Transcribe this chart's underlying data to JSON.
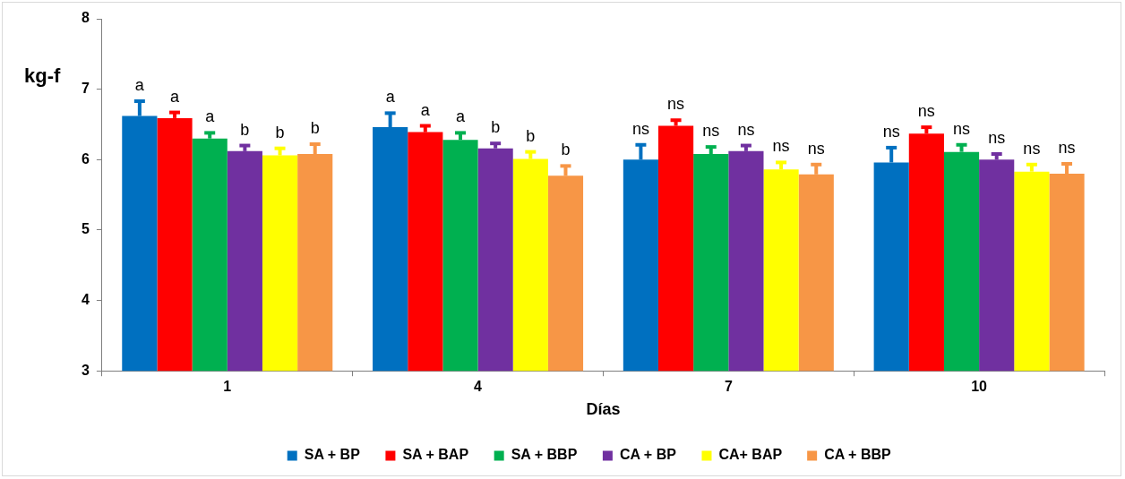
{
  "chart_data": {
    "type": "bar",
    "xlabel": "Días",
    "ylabel": "kg-f",
    "categories": [
      "1",
      "4",
      "7",
      "10"
    ],
    "ylim": [
      3,
      8
    ],
    "yticks": [
      3,
      4,
      5,
      6,
      7,
      8
    ],
    "grid": false,
    "legend": "bottom",
    "series": [
      {
        "name": "SA + BP",
        "color": "#0070c0",
        "values": [
          6.62,
          6.46,
          6.0,
          5.96
        ],
        "errors": [
          [
            6.62,
            6.83
          ],
          [
            6.46,
            6.66
          ],
          [
            6.0,
            6.21
          ],
          [
            5.96,
            6.17
          ]
        ],
        "value_labels": [
          "a",
          "a",
          "ns",
          "ns"
        ]
      },
      {
        "name": "SA + BAP",
        "color": "#ff0000",
        "values": [
          6.59,
          6.39,
          6.48,
          6.37
        ],
        "errors": [
          [
            6.59,
            6.67
          ],
          [
            6.39,
            6.48
          ],
          [
            6.48,
            6.56
          ],
          [
            6.37,
            6.46
          ]
        ],
        "value_labels": [
          "a",
          "a",
          "ns",
          "ns"
        ]
      },
      {
        "name": "SA + BBP",
        "color": "#00b050",
        "values": [
          6.3,
          6.28,
          6.08,
          6.11
        ],
        "errors": [
          [
            6.3,
            6.38
          ],
          [
            6.28,
            6.38
          ],
          [
            6.08,
            6.18
          ],
          [
            6.11,
            6.21
          ]
        ],
        "value_labels": [
          "a",
          "a",
          "ns",
          "ns"
        ]
      },
      {
        "name": "CA + BP",
        "color": "#7030a0",
        "values": [
          6.12,
          6.16,
          6.12,
          6.0
        ],
        "errors": [
          [
            6.12,
            6.2
          ],
          [
            6.16,
            6.23
          ],
          [
            6.12,
            6.2
          ],
          [
            6.0,
            6.08
          ]
        ],
        "value_labels": [
          "b",
          "b",
          "ns",
          "ns"
        ]
      },
      {
        "name": "CA+ BAP",
        "color": "#ffff00",
        "values": [
          6.06,
          6.01,
          5.86,
          5.83
        ],
        "errors": [
          [
            6.06,
            6.16
          ],
          [
            6.01,
            6.11
          ],
          [
            5.86,
            5.96
          ],
          [
            5.83,
            5.93
          ]
        ],
        "value_labels": [
          "b",
          "b",
          "ns",
          "ns"
        ]
      },
      {
        "name": "CA + BBP",
        "color": "#f79646",
        "values": [
          6.08,
          5.77,
          5.79,
          5.8
        ],
        "errors": [
          [
            6.08,
            6.22
          ],
          [
            5.77,
            5.91
          ],
          [
            5.79,
            5.93
          ],
          [
            5.8,
            5.94
          ]
        ],
        "value_labels": [
          "b",
          "b",
          "ns",
          "ns"
        ]
      }
    ]
  }
}
